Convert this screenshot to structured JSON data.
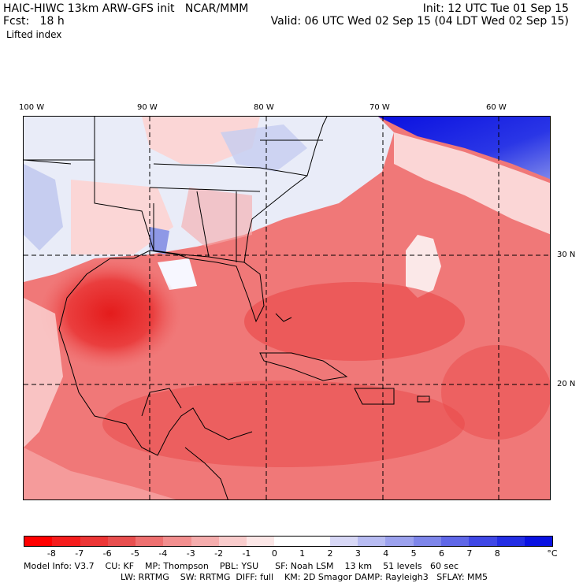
{
  "header": {
    "line1_left": "HAIC-HIWC 13km ARW-GFS init   NCAR/MMM",
    "line1_right": "Init: 12 UTC Tue 01 Sep 15",
    "line2_left": "Fcst:   18 h",
    "line2_right": "Valid: 06 UTC Wed 02 Sep 15 (04 LDT Wed 02 Sep 15)",
    "field": "Lifted index"
  },
  "map": {
    "lon_labels": [
      "100 W",
      "90 W",
      "80 W",
      "70 W",
      "60 W"
    ],
    "lat_labels": [
      "30 N",
      "20 N"
    ],
    "colors": {
      "land_cool": "#e9ecf8",
      "blue_light": "#c6cdf0",
      "blue_mid": "#8e98e6",
      "blue_dark": "#1c28e6",
      "blue_deep": "#0a10e0",
      "red_faint": "#fbd6d6",
      "red_light": "#f7aaaa",
      "red_mid": "#f07878",
      "red": "#ea4a4a",
      "red_dark": "#e52020",
      "border": "#000000"
    }
  },
  "colorbar": {
    "colors": [
      "#ff0000",
      "#f51d1d",
      "#ec3636",
      "#e84f4f",
      "#ee7070",
      "#f28f8f",
      "#f5adad",
      "#f9cccc",
      "#fce7e7",
      "#ffffff",
      "#ffffff",
      "#d8d8f6",
      "#b8bcf2",
      "#9ca2ee",
      "#7e86ea",
      "#6068e8",
      "#4048e6",
      "#242ee4",
      "#0a12e2"
    ],
    "labels": [
      "-8",
      "-7",
      "-6",
      "-5",
      "-4",
      "-3",
      "-2",
      "-1",
      "0",
      "1",
      "2",
      "3",
      "4",
      "5",
      "6",
      "7",
      "8"
    ],
    "unit": "°C"
  },
  "model_info": {
    "line1": "Model Info: V3.7    CU: KF    MP: Thompson    PBL: YSU      SF: Noah LSM    13 km    51 levels   60 sec",
    "line2": "LW: RRTMG    SW: RRTMG  DIFF: full    KM: 2D Smagor DAMP: Rayleigh3   SFLAY: MM5"
  }
}
